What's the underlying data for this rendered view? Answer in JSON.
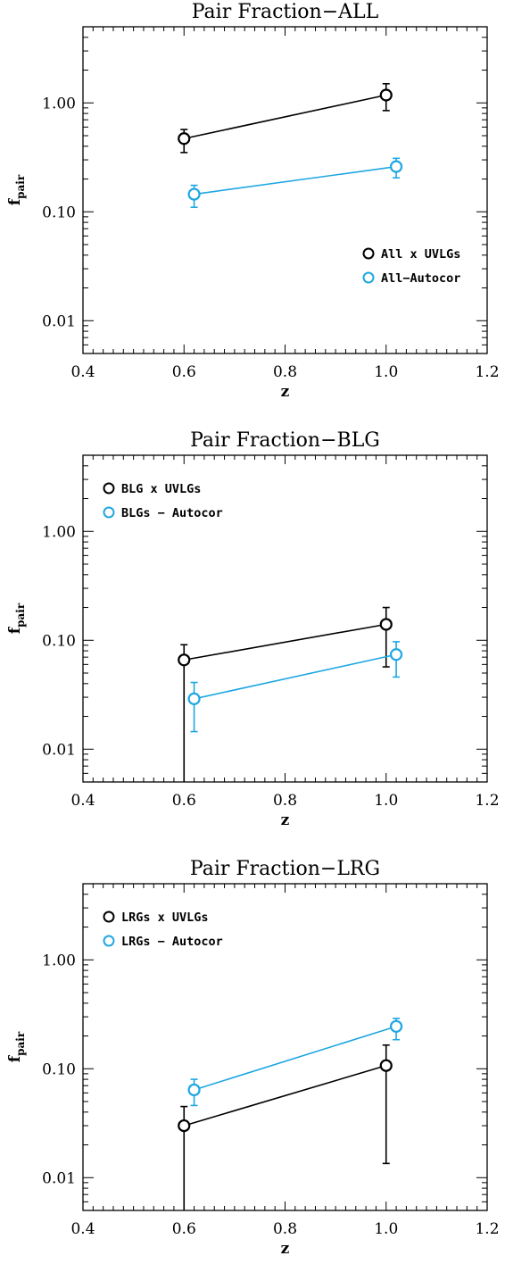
{
  "colors": {
    "black_series": "#000000",
    "blue_series": "#1ea7e1"
  },
  "chart_data": [
    {
      "type": "scatter",
      "title": "Pair Fraction−ALL",
      "xlabel": "z",
      "ylabel_main": "f",
      "ylabel_sub": "pair",
      "xlim": [
        0.4,
        1.2
      ],
      "ylim": [
        0.005,
        5
      ],
      "y_scale": "log",
      "x_ticks": [
        "0.4",
        "0.6",
        "0.8",
        "1.0",
        "1.2"
      ],
      "y_ticks": [
        "0.01",
        "0.10",
        "1.00"
      ],
      "legend_position": "lower-right",
      "series": [
        {
          "name": "All x UVLGs",
          "color": "#000000",
          "x": [
            0.6,
            1.0
          ],
          "y": [
            0.47,
            1.18
          ],
          "yerr_low": [
            0.35,
            0.85
          ],
          "yerr_high": [
            0.57,
            1.5
          ]
        },
        {
          "name": "All−Autocor",
          "color": "#1ea7e1",
          "x": [
            0.62,
            1.02
          ],
          "y": [
            0.145,
            0.26
          ],
          "yerr_low": [
            0.11,
            0.205
          ],
          "yerr_high": [
            0.175,
            0.31
          ]
        }
      ]
    },
    {
      "type": "scatter",
      "title": "Pair Fraction−BLG",
      "xlabel": "z",
      "ylabel_main": "f",
      "ylabel_sub": "pair",
      "xlim": [
        0.4,
        1.2
      ],
      "ylim": [
        0.005,
        5
      ],
      "y_scale": "log",
      "x_ticks": [
        "0.4",
        "0.6",
        "0.8",
        "1.0",
        "1.2"
      ],
      "y_ticks": [
        "0.01",
        "0.10",
        "1.00"
      ],
      "legend_position": "upper-left",
      "series": [
        {
          "name": "BLG x UVLGs",
          "color": "#000000",
          "x": [
            0.6,
            1.0
          ],
          "y": [
            0.066,
            0.14
          ],
          "yerr_low": [
            0.004,
            0.057
          ],
          "yerr_high": [
            0.091,
            0.2
          ]
        },
        {
          "name": "BLGs − Autocor",
          "color": "#1ea7e1",
          "x": [
            0.62,
            1.02
          ],
          "y": [
            0.029,
            0.074
          ],
          "yerr_low": [
            0.0145,
            0.046
          ],
          "yerr_high": [
            0.041,
            0.097
          ]
        }
      ]
    },
    {
      "type": "scatter",
      "title": "Pair Fraction−LRG",
      "xlabel": "z",
      "ylabel_main": "f",
      "ylabel_sub": "pair",
      "xlim": [
        0.4,
        1.2
      ],
      "ylim": [
        0.005,
        5
      ],
      "y_scale": "log",
      "x_ticks": [
        "0.4",
        "0.6",
        "0.8",
        "1.0",
        "1.2"
      ],
      "y_ticks": [
        "0.01",
        "0.10",
        "1.00"
      ],
      "legend_position": "upper-left",
      "series": [
        {
          "name": "LRGs x UVLGs",
          "color": "#000000",
          "x": [
            0.6,
            1.0
          ],
          "y": [
            0.03,
            0.107
          ],
          "yerr_low": [
            0.004,
            0.0135
          ],
          "yerr_high": [
            0.045,
            0.165
          ]
        },
        {
          "name": "LRGs − Autocor",
          "color": "#1ea7e1",
          "x": [
            0.62,
            1.02
          ],
          "y": [
            0.064,
            0.245
          ],
          "yerr_low": [
            0.046,
            0.185
          ],
          "yerr_high": [
            0.08,
            0.29
          ]
        }
      ]
    }
  ]
}
